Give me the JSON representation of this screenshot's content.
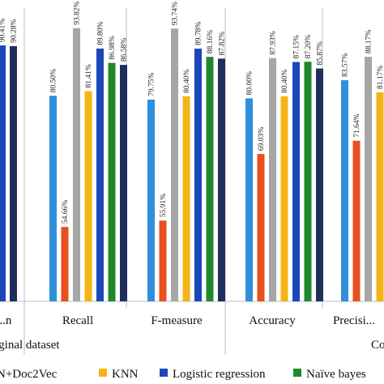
{
  "chart_data": {
    "type": "bar",
    "ylim": [
      40,
      100
    ],
    "groups": [
      {
        "label": "...iginal dataset",
        "categories": [
          "...n",
          "Recall",
          "F-measure"
        ]
      },
      {
        "label": "Co...",
        "categories": [
          "Accuracy",
          "Precisi..."
        ]
      }
    ],
    "categories": [
      "...n",
      "Recall",
      "F-measure",
      "Accuracy",
      "Precisi..."
    ],
    "series": [
      {
        "name": "...N+Doc2Vec",
        "color": "#2f8fdc",
        "values": [
          null,
          80.5,
          79.75,
          80.0,
          83.57
        ]
      },
      {
        "name": "",
        "color": "#e8501e",
        "values": [
          null,
          54.66,
          55.91,
          69.03,
          71.64
        ]
      },
      {
        "name": "",
        "color": "#a6a6a6",
        "values": [
          null,
          93.82,
          93.74,
          87.93,
          88.17
        ]
      },
      {
        "name": "KNN",
        "color": "#f5b316",
        "values": [
          null,
          81.41,
          80.4,
          80.4,
          81.17
        ]
      },
      {
        "name": "Logistic regression",
        "color": "#1c47b8",
        "values": [
          90.41,
          89.8,
          89.78,
          87.15,
          null
        ]
      },
      {
        "name": "Naïve bayes",
        "color": "#1e8a2c",
        "values": [
          null,
          86.98,
          88.16,
          87.2,
          null
        ]
      },
      {
        "name": "",
        "color": "#1f2f5c",
        "values": [
          90.28,
          86.58,
          87.82,
          85.87,
          null
        ]
      }
    ],
    "data_labels": [
      [
        "90.41%",
        "90.28%"
      ],
      [
        "80.50%",
        "54.66%",
        "93.82%",
        "81.41%",
        "89.80%",
        "86.98%",
        "86.58%"
      ],
      [
        "79.75%",
        "55.91%",
        "93.74%",
        "80.40%",
        "89.78%",
        "88.16%",
        "87.82%"
      ],
      [
        "80.00%",
        "69.03%",
        "87.93%",
        "80.40%",
        "87.15%",
        "87.20%",
        "85.87%"
      ],
      [
        "83.57%",
        "71.64%",
        "88.17%",
        "81.17%"
      ]
    ],
    "grid": false,
    "legend_position": "bottom"
  }
}
